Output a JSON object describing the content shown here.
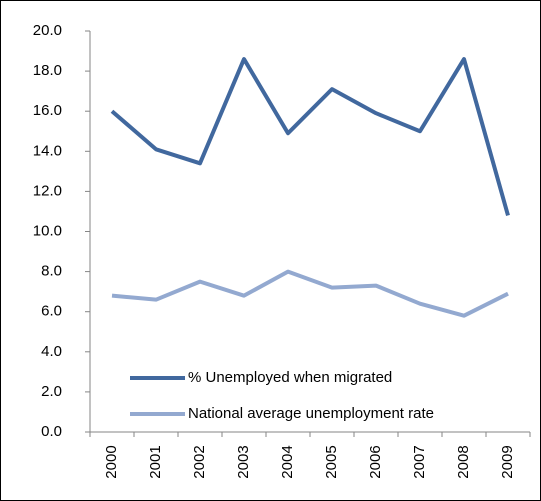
{
  "chart_data": {
    "type": "line",
    "categories": [
      "2000",
      "2001",
      "2002",
      "2003",
      "2004",
      "2005",
      "2006",
      "2007",
      "2008",
      "2009"
    ],
    "series": [
      {
        "name": "% Unemployed when migrated",
        "color": "#41689e",
        "values": [
          16.0,
          14.1,
          13.4,
          18.6,
          14.9,
          17.1,
          15.9,
          15.0,
          18.6,
          10.8
        ]
      },
      {
        "name": "National average unemployment rate",
        "color": "#93a9d0",
        "values": [
          6.8,
          6.6,
          7.5,
          6.8,
          8.0,
          7.2,
          7.3,
          6.4,
          5.8,
          6.9
        ]
      }
    ],
    "ylim": [
      0,
      20
    ],
    "yticks": [
      {
        "value": 0,
        "label": "0.0"
      },
      {
        "value": 2,
        "label": "2.0"
      },
      {
        "value": 4,
        "label": "4.0"
      },
      {
        "value": 6,
        "label": "6.0"
      },
      {
        "value": 8,
        "label": "8.0"
      },
      {
        "value": 10,
        "label": "10.0"
      },
      {
        "value": 12,
        "label": "12.0"
      },
      {
        "value": 14,
        "label": "14.0"
      },
      {
        "value": 16,
        "label": "16.0"
      },
      {
        "value": 18,
        "label": "18.0"
      },
      {
        "value": 20,
        "label": "20.0"
      }
    ],
    "grid": false,
    "legend": "bottom"
  }
}
